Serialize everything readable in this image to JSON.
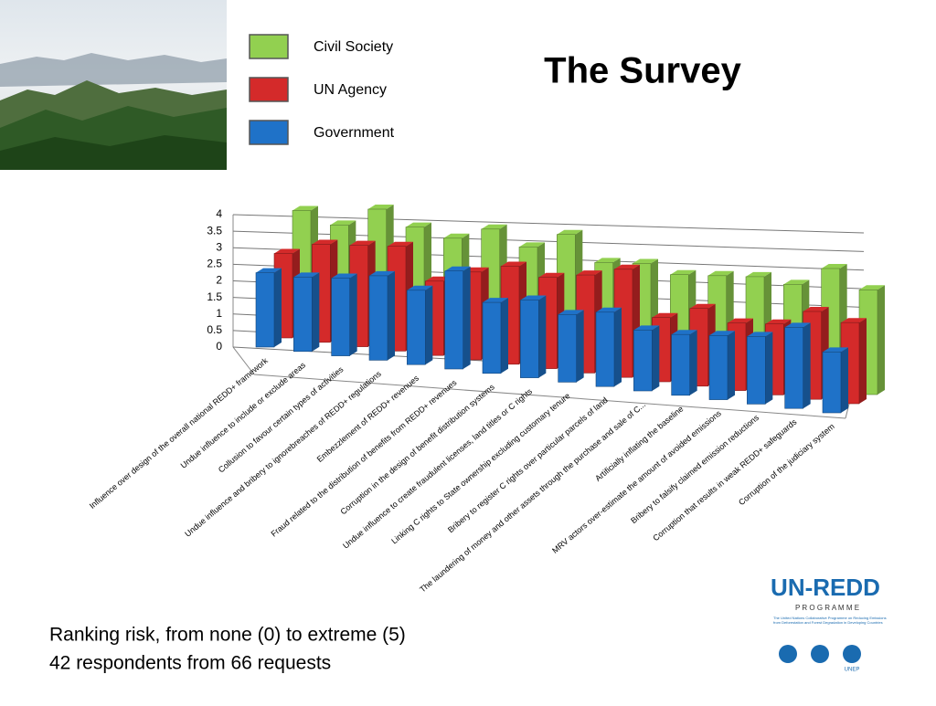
{
  "chart_data": {
    "type": "bar3d",
    "title": "The Survey",
    "categories": [
      "Influence over design of the overall national REDD+ framework",
      "Undue influence to include or exclude areas",
      "Collusion to favour certain types of activities",
      "Undue influence and bribery to ignorebreaches of REDD+ regulations",
      "Embezzlement of REDD+ revenues",
      "Fraud related to the distribution of benefits from REDD+ revenues",
      "Corruption in the design of benefit distribution systems",
      "Undue influence to create fraudulent licenses, land titles or C rights",
      "Linking C rights to State ownership excluding customary tenure",
      "Bribery to register C rights over particular parcels of land",
      "The laundering of money and other assets through the purchase and sale of C...",
      "Artificially inflating the baseline",
      "MRV actors over-estimate the amount of avoided emissions",
      "Bribery  to falsify claimed emission reductions",
      "Corruption that results in weak REDD+ safeguards",
      "Corruption of the judiciary system"
    ],
    "series": [
      {
        "name": "Civil Society",
        "color": "#92d050",
        "values": [
          3.5,
          3.2,
          3.8,
          3.4,
          3.2,
          3.6,
          3.2,
          3.7,
          3.0,
          3.1,
          2.9,
          3.0,
          3.1,
          3.0,
          3.6,
          3.1
        ]
      },
      {
        "name": "UN Agency",
        "color": "#d42a2a",
        "values": [
          2.5,
          2.9,
          3.0,
          3.1,
          2.2,
          2.6,
          2.9,
          2.7,
          2.9,
          3.2,
          1.9,
          2.3,
          2.0,
          2.1,
          2.6,
          2.4
        ]
      },
      {
        "name": "Government",
        "color": "#1f72c8",
        "values": [
          2.2,
          2.2,
          2.3,
          2.5,
          2.2,
          2.9,
          2.1,
          2.3,
          2.0,
          2.2,
          1.8,
          1.8,
          1.9,
          2.0,
          2.4,
          1.8
        ]
      }
    ],
    "ylim": [
      0,
      4
    ],
    "yticks": [
      0,
      0.5,
      1,
      1.5,
      2,
      2.5,
      3,
      3.5,
      4
    ],
    "grid": true
  },
  "notes": [
    "Ranking risk, from none (0) to extreme (5)",
    "42 respondents from 66 requests"
  ],
  "logo": {
    "name": "UN-REDD",
    "subtitle": "P R O G R A M M E",
    "text": "The United Nations Collaborative Programme on Reducing Emissions from Deforestation and Forest Degradation in Developing Countries",
    "partner": "UNEP"
  }
}
